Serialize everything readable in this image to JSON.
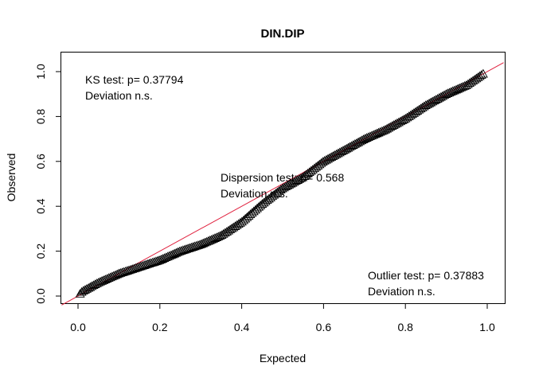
{
  "chart_data": {
    "type": "scatter",
    "title": "DIN.DIP",
    "xlabel": "Expected",
    "ylabel": "Observed",
    "xlim": [
      0,
      1
    ],
    "ylim": [
      0,
      1
    ],
    "xticks": [
      "0.0",
      "0.2",
      "0.4",
      "0.6",
      "0.8",
      "1.0"
    ],
    "yticks": [
      "0.0",
      "0.2",
      "0.4",
      "0.6",
      "0.8",
      "1.0"
    ],
    "marker": "open-triangle",
    "marker_color": "#000000",
    "reference_line": {
      "intercept": 0,
      "slope": 1,
      "color": "#e0213e"
    },
    "grid": false,
    "annotations": {
      "ks": {
        "line1": "KS test: p= 0.37794",
        "line2": "Deviation  n.s."
      },
      "dispersion": {
        "line1": "Dispersion test: p= 0.568",
        "line2": "Deviation n.s."
      },
      "outlier": {
        "line1": "Outlier test: p= 0.37883",
        "line2": "Deviation  n.s."
      }
    },
    "curve_knots": [
      [
        0.0,
        0.0
      ],
      [
        0.01,
        0.02
      ],
      [
        0.05,
        0.06
      ],
      [
        0.1,
        0.1
      ],
      [
        0.15,
        0.13
      ],
      [
        0.2,
        0.16
      ],
      [
        0.25,
        0.2
      ],
      [
        0.3,
        0.23
      ],
      [
        0.35,
        0.27
      ],
      [
        0.4,
        0.33
      ],
      [
        0.45,
        0.41
      ],
      [
        0.5,
        0.48
      ],
      [
        0.55,
        0.53
      ],
      [
        0.6,
        0.6
      ],
      [
        0.65,
        0.65
      ],
      [
        0.7,
        0.7
      ],
      [
        0.75,
        0.74
      ],
      [
        0.8,
        0.79
      ],
      [
        0.85,
        0.85
      ],
      [
        0.9,
        0.9
      ],
      [
        0.95,
        0.94
      ],
      [
        0.99,
        0.99
      ]
    ],
    "n_points": 240
  }
}
